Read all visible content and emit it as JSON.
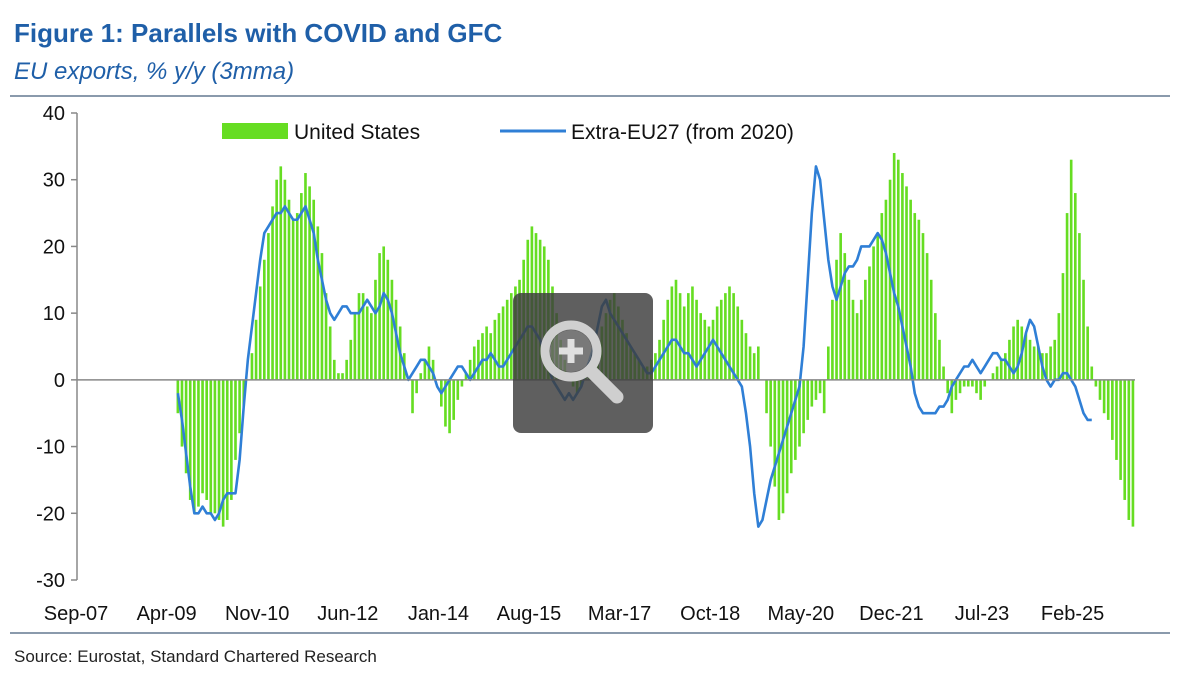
{
  "header": {
    "title": "Figure 1: Parallels with COVID and GFC",
    "subtitle": "EU exports, % y/y (3mma)"
  },
  "footer": {
    "source": "Source: Eurostat, Standard Chartered Research"
  },
  "colors": {
    "title": "#1f5fa8",
    "bars": "#66dd22",
    "line": "#2f7fd6",
    "axis": "#888888"
  },
  "overlay": {
    "icon": "zoom-in-icon"
  },
  "chart_data": {
    "type": "bar",
    "title": "Figure 1: Parallels with COVID and GFC",
    "subtitle": "EU exports, % y/y (3mma)",
    "xlabel": "",
    "ylabel": "",
    "ylim": [
      -30,
      40
    ],
    "yticks": [
      40,
      30,
      20,
      10,
      0,
      -10,
      -20,
      -30
    ],
    "xticks": [
      "Sep-07",
      "Apr-09",
      "Nov-10",
      "Jun-12",
      "Jan-14",
      "Aug-15",
      "Mar-17",
      "Oct-18",
      "May-20",
      "Dec-21",
      "Jul-23",
      "Feb-25"
    ],
    "legend_position": "top",
    "grid": false,
    "series": [
      {
        "name": "United States",
        "type": "bar",
        "values": [
          0,
          0,
          0,
          0,
          0,
          0,
          0,
          0,
          0,
          0,
          0,
          0,
          0,
          0,
          0,
          0,
          0,
          0,
          0,
          0,
          0,
          0,
          0,
          0,
          -5,
          -10,
          -14,
          -18,
          -20,
          -19,
          -17,
          -18,
          -20,
          -20,
          -21,
          -22,
          -21,
          -18,
          -12,
          -8,
          -4,
          0,
          4,
          9,
          14,
          18,
          22,
          26,
          30,
          32,
          30,
          27,
          24,
          25,
          28,
          31,
          29,
          27,
          23,
          19,
          13,
          8,
          3,
          1,
          1,
          3,
          6,
          10,
          13,
          13,
          11,
          10,
          15,
          19,
          20,
          18,
          15,
          12,
          8,
          4,
          0,
          -5,
          -2,
          1,
          3,
          5,
          3,
          0,
          -4,
          -7,
          -8,
          -6,
          -3,
          -1,
          1,
          3,
          5,
          6,
          7,
          8,
          7,
          9,
          10,
          11,
          12,
          13,
          14,
          15,
          18,
          21,
          23,
          22,
          21,
          20,
          18,
          14,
          10,
          6,
          3,
          1,
          -1,
          -2,
          -1,
          1,
          3,
          5,
          6,
          8,
          10,
          12,
          13,
          11,
          9,
          7,
          5,
          4,
          3,
          2,
          2,
          3,
          4,
          6,
          9,
          12,
          14,
          15,
          13,
          11,
          13,
          14,
          12,
          10,
          9,
          8,
          9,
          11,
          12,
          13,
          14,
          13,
          11,
          9,
          7,
          5,
          4,
          5,
          0,
          -5,
          -10,
          -16,
          -21,
          -20,
          -17,
          -14,
          -12,
          -10,
          -8,
          -6,
          -4,
          -3,
          -2,
          -5,
          5,
          12,
          18,
          22,
          19,
          15,
          12,
          10,
          12,
          15,
          17,
          20,
          22,
          25,
          27,
          30,
          34,
          33,
          31,
          29,
          27,
          25,
          24,
          22,
          19,
          15,
          10,
          6,
          2,
          -2,
          -5,
          -3,
          -2,
          -1,
          -1,
          -1,
          -2,
          -3,
          -1,
          0,
          1,
          2,
          3,
          4,
          6,
          8,
          9,
          8,
          7,
          6,
          5,
          5,
          4,
          4,
          5,
          6,
          10,
          16,
          25,
          33,
          28,
          22,
          15,
          8,
          2,
          -1,
          -3,
          -5,
          -6,
          -9,
          -12,
          -15,
          -18,
          -21,
          -22
        ]
      },
      {
        "name": "Extra-EU27 (from 2020)",
        "type": "line",
        "values": [
          null,
          null,
          null,
          null,
          null,
          null,
          null,
          null,
          null,
          null,
          null,
          null,
          null,
          null,
          null,
          null,
          null,
          null,
          null,
          null,
          null,
          null,
          null,
          null,
          -2,
          -6,
          -11,
          -16,
          -20,
          -20,
          -19,
          -20,
          -20,
          -21,
          -20,
          -18,
          -17,
          -17,
          -17,
          -12,
          -4,
          3,
          8,
          13,
          18,
          22,
          23,
          24,
          25,
          25,
          26,
          25,
          24,
          24,
          25,
          26,
          24,
          22,
          18,
          15,
          12,
          10,
          9,
          10,
          11,
          11,
          10,
          10,
          10,
          11,
          12,
          11,
          10,
          11,
          13,
          12,
          10,
          7,
          4,
          2,
          0,
          1,
          2,
          3,
          3,
          2,
          1,
          -1,
          -2,
          -1,
          0,
          1,
          2,
          2,
          1,
          0,
          1,
          2,
          3,
          3,
          4,
          3,
          2,
          2,
          3,
          4,
          5,
          6,
          7,
          8,
          8,
          7,
          6,
          4,
          2,
          0,
          -1,
          -2,
          -3,
          -2,
          -3,
          -2,
          -1,
          1,
          3,
          5,
          8,
          11,
          12,
          10,
          9,
          8,
          7,
          6,
          5,
          4,
          3,
          2,
          1,
          1,
          2,
          3,
          4,
          5,
          6,
          6,
          5,
          4,
          4,
          3,
          2,
          3,
          4,
          5,
          6,
          5,
          4,
          3,
          2,
          1,
          0,
          -1,
          -5,
          -10,
          -17,
          -22,
          -21,
          -18,
          -15,
          -13,
          -11,
          -9,
          -7,
          -5,
          -3,
          -1,
          5,
          15,
          25,
          32,
          30,
          24,
          18,
          14,
          12,
          14,
          16,
          17,
          17,
          18,
          20,
          20,
          20,
          21,
          22,
          21,
          19,
          16,
          13,
          11,
          8,
          5,
          2,
          -2,
          -4,
          -5,
          -5,
          -5,
          -5,
          -4,
          -4,
          -3,
          -1,
          0,
          1,
          2,
          2,
          3,
          2,
          1,
          2,
          3,
          4,
          4,
          3,
          3,
          2,
          1,
          2,
          4,
          7,
          9,
          8,
          5,
          2,
          0,
          -1,
          0,
          0,
          1,
          1,
          0,
          -1,
          -3,
          -5,
          -6,
          -6
        ]
      }
    ]
  }
}
